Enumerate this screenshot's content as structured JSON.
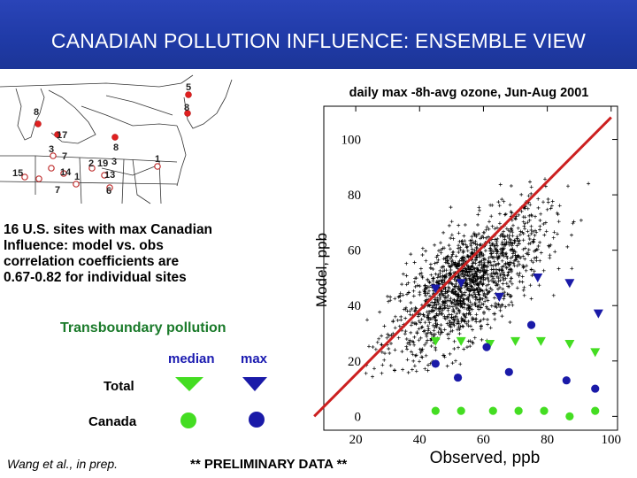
{
  "title": "CANADIAN POLLUTION INFLUENCE: ENSEMBLE VIEW",
  "map": {
    "site_labels": [
      "5",
      "8",
      "8",
      "1",
      "17",
      "3",
      "8",
      "7",
      "19",
      "2",
      "1",
      "15",
      "14",
      "13",
      "3",
      "7",
      "6"
    ]
  },
  "description": {
    "lines": [
      "16 U.S. sites with max Canadian",
      "Influence: model vs. obs",
      "correlation coefficients are",
      " 0.67-0.82 for individual sites"
    ]
  },
  "legend": {
    "heading": "Transboundary pollution",
    "col_median": "median",
    "col_max": "max",
    "row_total": "Total",
    "row_canada": "Canada",
    "colors": {
      "total": "#44dd22",
      "canada": "#1a1aa8"
    }
  },
  "footer": {
    "citation": "Wang et al., in prep.",
    "note": "** PRELIMINARY DATA **"
  },
  "chart_data": {
    "type": "scatter",
    "title": "daily max -8h-avg ozone, Jun-Aug 2001",
    "xlabel": "Observed, ppb",
    "ylabel": "Model, ppb",
    "xlim": [
      10,
      102
    ],
    "ylim": [
      -5,
      112
    ],
    "xticks": [
      "20",
      "40",
      "60",
      "80",
      "100"
    ],
    "yticks": [
      "0",
      "20",
      "40",
      "60",
      "80",
      "100"
    ],
    "one_to_one_line": {
      "color": "#cc2020",
      "x": [
        7,
        100
      ],
      "y": [
        0,
        108
      ]
    },
    "background_points": {
      "marker": "+",
      "color": "#000000",
      "approx_count": 1500,
      "center": [
        55,
        48
      ],
      "spread": [
        12,
        12
      ]
    },
    "series": [
      {
        "name": "Total median",
        "marker": "triangle-down",
        "color": "#44dd22",
        "points": [
          [
            45,
            27
          ],
          [
            53,
            27
          ],
          [
            62,
            26
          ],
          [
            70,
            27
          ],
          [
            78,
            27
          ],
          [
            87,
            26
          ],
          [
            95,
            23
          ]
        ]
      },
      {
        "name": "Total max",
        "marker": "triangle-down",
        "color": "#1a1aa8",
        "points": [
          [
            45,
            46
          ],
          [
            53,
            48
          ],
          [
            65,
            43
          ],
          [
            77,
            50
          ],
          [
            87,
            48
          ],
          [
            96,
            37
          ]
        ]
      },
      {
        "name": "Canada median",
        "marker": "circle",
        "color": "#44dd22",
        "points": [
          [
            45,
            2
          ],
          [
            53,
            2
          ],
          [
            63,
            2
          ],
          [
            71,
            2
          ],
          [
            79,
            2
          ],
          [
            87,
            0
          ],
          [
            95,
            2
          ]
        ]
      },
      {
        "name": "Canada max",
        "marker": "circle",
        "color": "#1a1aa8",
        "points": [
          [
            45,
            19
          ],
          [
            52,
            14
          ],
          [
            61,
            25
          ],
          [
            68,
            16
          ],
          [
            75,
            33
          ],
          [
            86,
            13
          ],
          [
            95,
            10
          ]
        ]
      }
    ]
  }
}
